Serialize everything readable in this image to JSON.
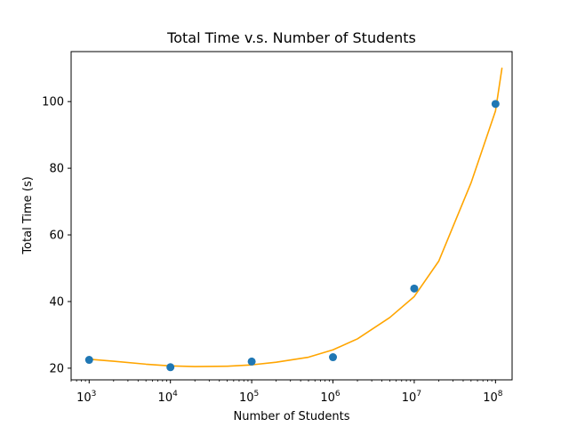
{
  "chart_data": {
    "type": "scatter",
    "title": "Total Time v.s. Number of Students",
    "xlabel": "Number of Students",
    "ylabel": "Total Time (s)",
    "x_scale": "log",
    "xlim": [
      600,
      160000000
    ],
    "ylim": [
      16.5,
      115
    ],
    "x_ticks": [
      1000,
      10000,
      100000,
      1000000,
      10000000,
      100000000
    ],
    "x_tick_labels": [
      {
        "base": "10",
        "exp": "3"
      },
      {
        "base": "10",
        "exp": "4"
      },
      {
        "base": "10",
        "exp": "5"
      },
      {
        "base": "10",
        "exp": "6"
      },
      {
        "base": "10",
        "exp": "7"
      },
      {
        "base": "10",
        "exp": "8"
      }
    ],
    "y_ticks": [
      20,
      40,
      60,
      80,
      100
    ],
    "y_tick_labels": [
      "20",
      "40",
      "60",
      "80",
      "100"
    ],
    "grid": false,
    "series": [
      {
        "kind": "scatter",
        "color": "#1f77b4",
        "x": [
          1000,
          10000,
          100000,
          1000000,
          10000000,
          100000000
        ],
        "y": [
          22.5,
          20.3,
          22.0,
          23.3,
          43.9,
          99.3
        ]
      },
      {
        "kind": "line",
        "color": "#ffa500",
        "x": [
          1000,
          2000,
          5000,
          10000,
          20000,
          50000,
          100000,
          200000,
          500000,
          1000000,
          2000000,
          5000000,
          10000000,
          20000000,
          50000000,
          100000000,
          120000000
        ],
        "y": [
          22.7,
          22.1,
          21.2,
          20.7,
          20.5,
          20.6,
          21.0,
          21.8,
          23.3,
          25.5,
          28.8,
          35.2,
          41.5,
          52.1,
          75.6,
          97.2,
          110.0
        ]
      }
    ]
  }
}
